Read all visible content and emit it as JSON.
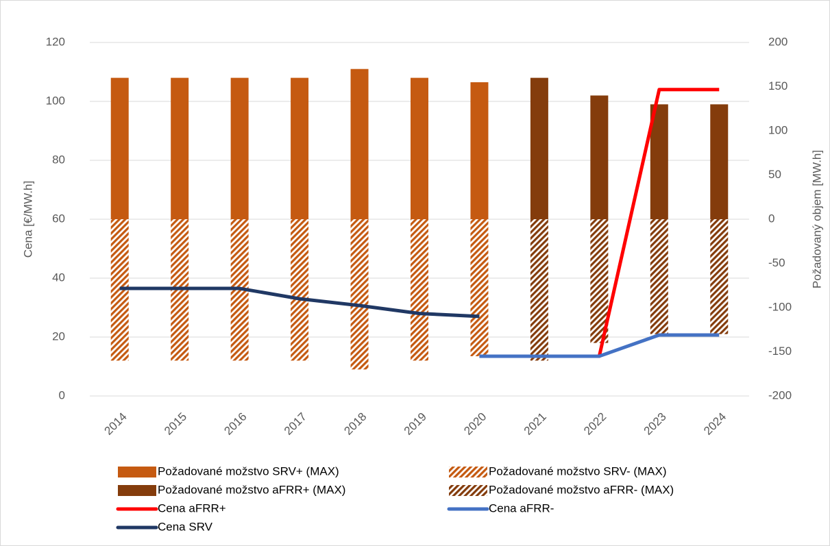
{
  "chart_data": {
    "type": "bar",
    "categories": [
      "2014",
      "2015",
      "2016",
      "2017",
      "2018",
      "2019",
      "2020",
      "2021",
      "2022",
      "2023",
      "2024"
    ],
    "ylabel": "Cena [€/MW.h]",
    "y2label": "Požadovaný objem [MW.h]",
    "ylim": [
      0,
      120
    ],
    "yticks": [
      0,
      20,
      40,
      60,
      80,
      100,
      120
    ],
    "y2lim": [
      -200,
      200
    ],
    "y2ticks": [
      -200,
      -150,
      -100,
      -50,
      0,
      50,
      100,
      150,
      200
    ],
    "grid": true,
    "legend": "bottom",
    "series": [
      {
        "name": "Požadované možstvo SRV+ (MAX)",
        "type": "bar",
        "axis": "y2",
        "color": "#c55a11",
        "hatch": false,
        "values": [
          160,
          160,
          160,
          160,
          170,
          160,
          155,
          null,
          null,
          null,
          null
        ]
      },
      {
        "name": "Požadované možstvo SRV- (MAX)",
        "type": "bar",
        "axis": "y2",
        "color": "#c55a11",
        "hatch": true,
        "values": [
          -160,
          -160,
          -160,
          -160,
          -170,
          -160,
          -155,
          null,
          null,
          null,
          null
        ]
      },
      {
        "name": "Požadované možstvo aFRR+ (MAX)",
        "type": "bar",
        "axis": "y2",
        "color": "#843c0c",
        "hatch": false,
        "values": [
          null,
          null,
          null,
          null,
          null,
          null,
          null,
          160,
          140,
          130,
          130
        ]
      },
      {
        "name": "Požadované možstvo aFRR- (MAX)",
        "type": "bar",
        "axis": "y2",
        "color": "#843c0c",
        "hatch": true,
        "values": [
          null,
          null,
          null,
          null,
          null,
          null,
          null,
          -160,
          -140,
          -130,
          -130
        ]
      },
      {
        "name": "Cena aFRR+",
        "type": "line",
        "color": "#ff0000",
        "values": [
          null,
          null,
          null,
          null,
          null,
          null,
          13.5,
          13.5,
          13.5,
          104,
          104
        ]
      },
      {
        "name": "Cena aFRR-",
        "type": "line",
        "color": "#4472c4",
        "values": [
          null,
          null,
          null,
          null,
          null,
          null,
          13.5,
          13.5,
          13.5,
          20.7,
          20.7
        ]
      },
      {
        "name": "Cena SRV",
        "type": "line",
        "color": "#203864",
        "values": [
          36.5,
          36.5,
          36.5,
          33,
          30.7,
          28,
          27,
          null,
          null,
          null,
          null
        ]
      }
    ]
  }
}
